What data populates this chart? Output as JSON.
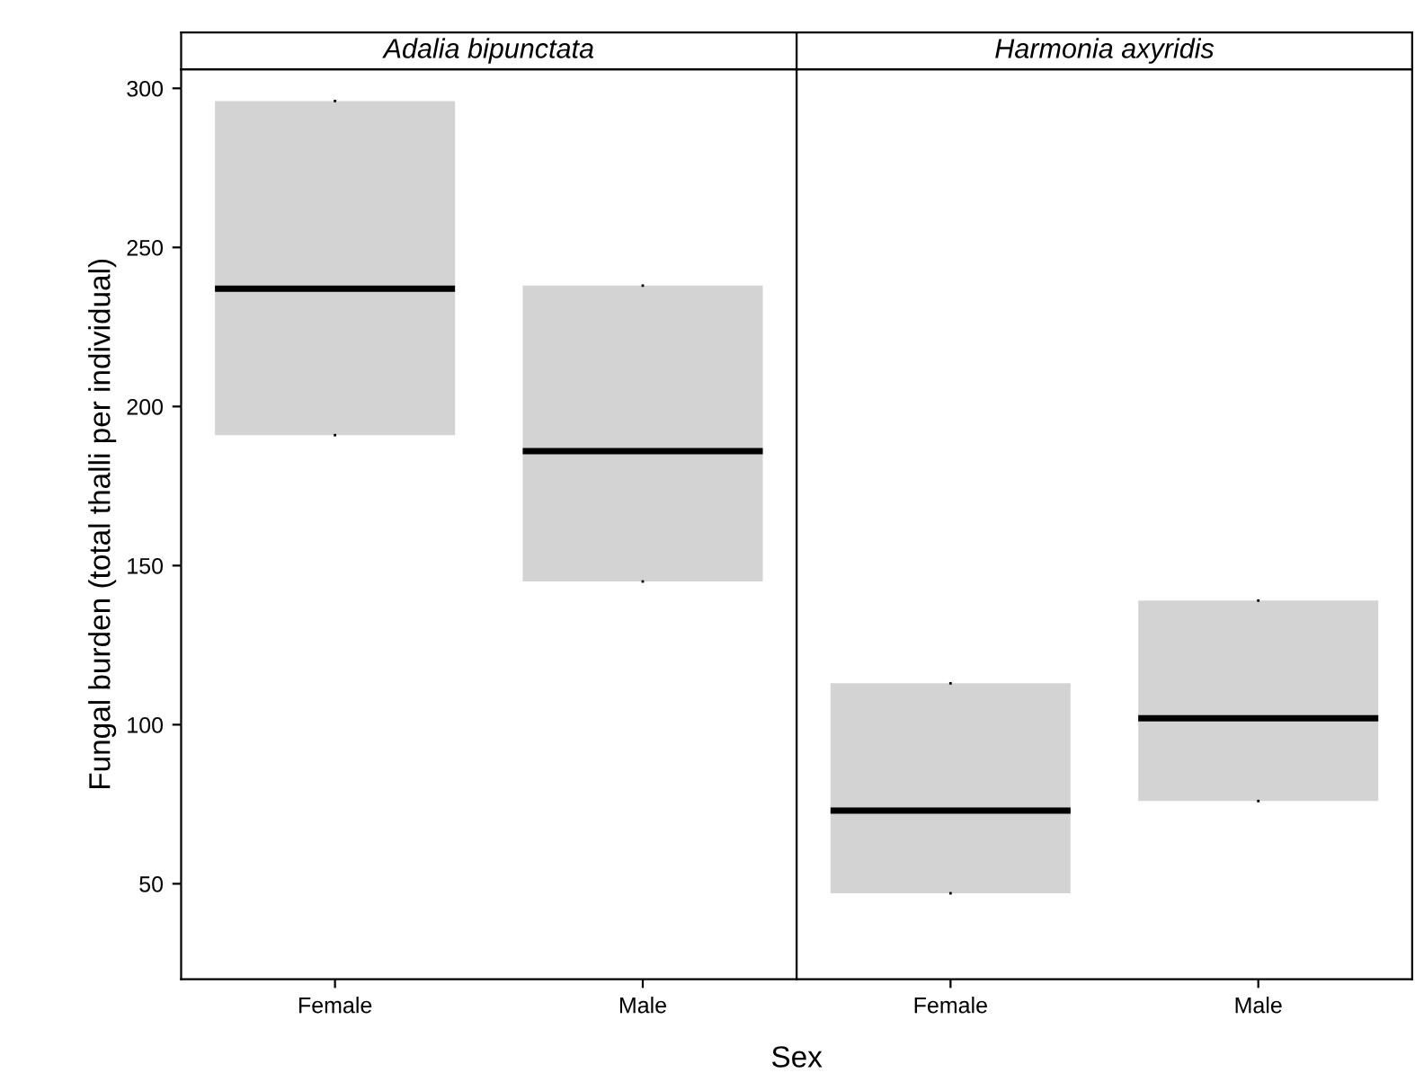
{
  "chart_data": [
    {
      "type": "box",
      "title": "Adalia bipunctata",
      "xlabel": "Sex",
      "ylabel": "Fungal burden (total thalli per individual)",
      "categories": [
        "Female",
        "Male"
      ],
      "color": "#d3d3d3",
      "boxes": [
        {
          "q1": 191,
          "median": 237,
          "q3": 296
        },
        {
          "q1": 145,
          "median": 186,
          "q3": 238
        }
      ],
      "ylim": [
        20,
        306
      ],
      "yticks": [
        50,
        100,
        150,
        200,
        250,
        300
      ],
      "grid": false
    },
    {
      "type": "box",
      "title": "Harmonia axyridis",
      "categories": [
        "Female",
        "Male"
      ],
      "color": "#d3d3d3",
      "boxes": [
        {
          "q1": 47,
          "median": 73,
          "q3": 113
        },
        {
          "q1": 76,
          "median": 102,
          "q3": 139
        }
      ],
      "ylim": [
        20,
        306
      ],
      "yticks": [
        50,
        100,
        150,
        200,
        250,
        300
      ],
      "tick_labels": "x",
      "grid": false
    }
  ]
}
